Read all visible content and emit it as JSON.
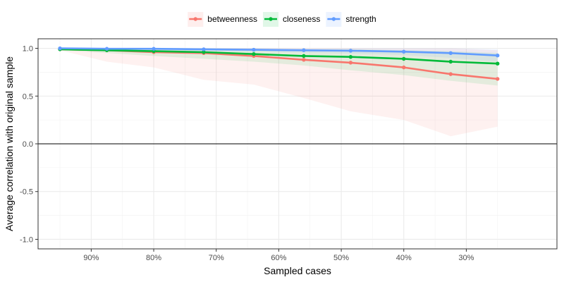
{
  "chart_data": {
    "type": "line",
    "xlabel": "Sampled cases",
    "ylabel": "Average correlation with original sample",
    "x": [
      95,
      87.5,
      80,
      72,
      64,
      56,
      48.5,
      40,
      32.5,
      25
    ],
    "xlim": [
      98.5,
      15.5
    ],
    "ylim": [
      -1.1,
      1.1
    ],
    "x_ticks": [
      90,
      80,
      70,
      60,
      50,
      40,
      30
    ],
    "x_tick_labels": [
      "90%",
      "80%",
      "70%",
      "60%",
      "50%",
      "40%",
      "30%"
    ],
    "y_ticks": [
      1.0,
      0.5,
      0.0,
      -0.5,
      -1.0
    ],
    "y_tick_labels": [
      "1.0",
      "0.5",
      "0.0",
      "-0.5",
      "-1.0"
    ],
    "reference_line": 0,
    "grid": true,
    "legend_position": "top",
    "series": [
      {
        "name": "betweenness",
        "color": "#F8766D",
        "values": [
          0.99,
          0.98,
          0.96,
          0.95,
          0.92,
          0.88,
          0.85,
          0.8,
          0.73,
          0.68
        ],
        "lower": [
          0.98,
          0.86,
          0.8,
          0.67,
          0.62,
          0.48,
          0.34,
          0.25,
          0.08,
          0.18
        ],
        "upper": [
          1.0,
          1.0,
          1.0,
          1.0,
          1.0,
          1.0,
          1.0,
          1.0,
          1.0,
          0.98
        ]
      },
      {
        "name": "closeness",
        "color": "#00BA38",
        "values": [
          0.99,
          0.98,
          0.97,
          0.96,
          0.94,
          0.92,
          0.91,
          0.89,
          0.86,
          0.84
        ],
        "lower": [
          0.98,
          0.95,
          0.92,
          0.89,
          0.86,
          0.82,
          0.77,
          0.72,
          0.66,
          0.61
        ],
        "upper": [
          1.0,
          1.0,
          1.0,
          1.0,
          0.99,
          0.99,
          0.99,
          0.98,
          0.97,
          0.95
        ]
      },
      {
        "name": "strength",
        "color": "#619CFF",
        "values": [
          1.0,
          0.995,
          0.995,
          0.99,
          0.985,
          0.98,
          0.975,
          0.965,
          0.95,
          0.925
        ],
        "lower": [
          0.99,
          0.98,
          0.975,
          0.97,
          0.965,
          0.955,
          0.945,
          0.93,
          0.9,
          0.86
        ],
        "upper": [
          1.0,
          1.0,
          1.0,
          1.0,
          1.0,
          1.0,
          1.0,
          1.0,
          1.0,
          0.99
        ]
      }
    ]
  }
}
